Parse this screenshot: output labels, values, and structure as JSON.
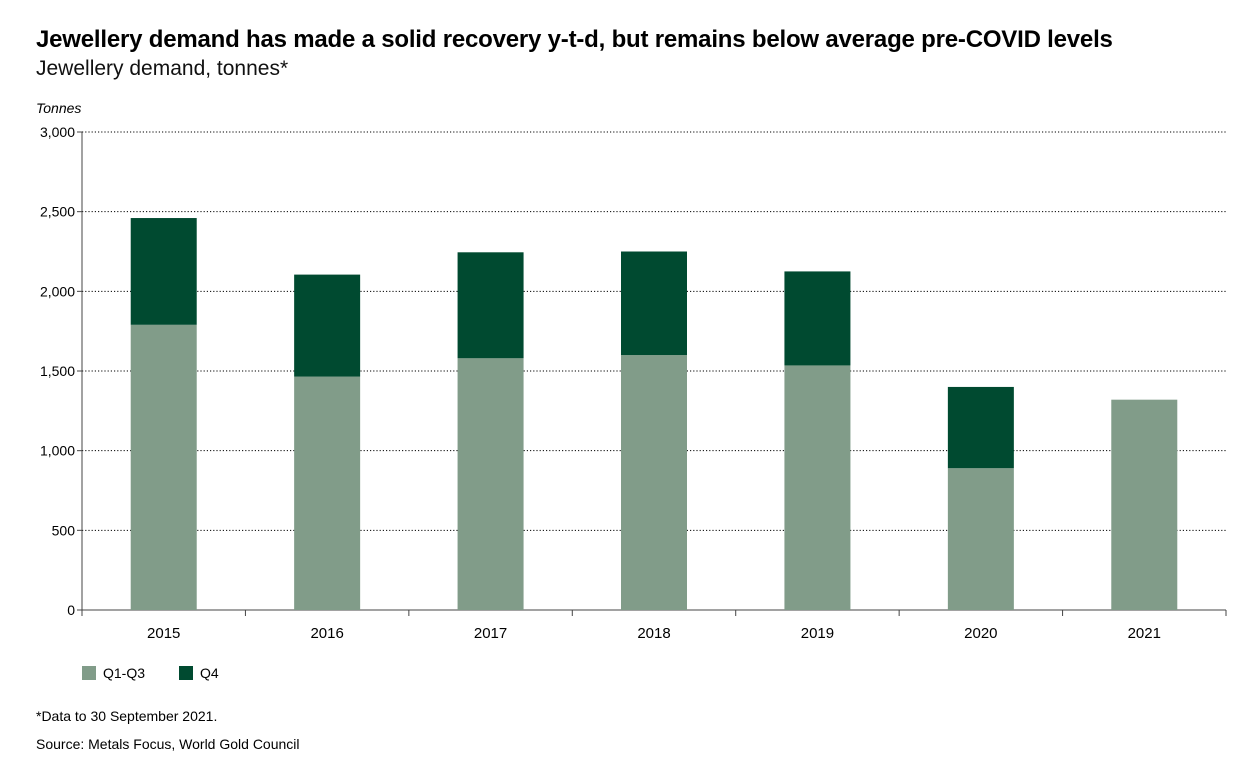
{
  "title": "Jewellery demand has made a solid recovery y-t-d, but remains below average pre-COVID levels",
  "subtitle": "Jewellery demand, tonnes*",
  "footnote": "*Data to 30 September 2021.",
  "source": "Source: Metals Focus, World Gold Council",
  "colors": {
    "q1q3": "#819c89",
    "q4": "#004a30",
    "grid": "#000000",
    "axis": "#444444"
  },
  "chart_data": {
    "type": "bar",
    "stacked": true,
    "title": "Jewellery demand has made a solid recovery y-t-d, but remains below average pre-COVID levels",
    "ylabel": "Tonnes",
    "xlabel": "",
    "ylim": [
      0,
      3000
    ],
    "yticks": [
      0,
      500,
      1000,
      1500,
      2000,
      2500,
      3000
    ],
    "ytick_labels": [
      "0",
      "500",
      "1,000",
      "1,500",
      "2,000",
      "2,500",
      "3,000"
    ],
    "categories": [
      "2015",
      "2016",
      "2017",
      "2018",
      "2019",
      "2020",
      "2021"
    ],
    "series": [
      {
        "name": "Q1-Q3",
        "color": "#819c89",
        "values": [
          1790,
          1465,
          1580,
          1600,
          1535,
          890,
          1320
        ]
      },
      {
        "name": "Q4",
        "color": "#004a30",
        "values": [
          670,
          640,
          665,
          650,
          590,
          510,
          0
        ]
      }
    ],
    "grid": true,
    "legend_position": "bottom-left"
  }
}
